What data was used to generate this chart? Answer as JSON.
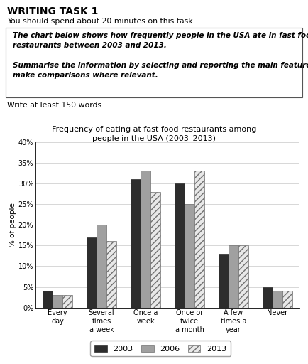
{
  "title_line1": "Frequency of eating at fast food restaurants among",
  "title_line2": "people in the USA (2003–2013)",
  "categories": [
    "Every\nday",
    "Several\ntimes\na week",
    "Once a\nweek",
    "Once or\ntwice\na month",
    "A few\ntimes a\nyear",
    "Never"
  ],
  "years": [
    "2003",
    "2006",
    "2013"
  ],
  "values": {
    "2003": [
      4,
      17,
      31,
      30,
      13,
      5
    ],
    "2006": [
      3,
      20,
      33,
      25,
      15,
      4
    ],
    "2013": [
      3,
      16,
      28,
      33,
      15,
      4
    ]
  },
  "bar_colors": [
    "#2d2d2d",
    "#a0a0a0",
    "#e8e8e8"
  ],
  "bar_hatches": [
    null,
    null,
    "////"
  ],
  "bar_edgecolors": [
    "#2d2d2d",
    "#707070",
    "#707070"
  ],
  "ylabel": "% of people",
  "ylim": [
    0,
    40
  ],
  "yticks": [
    0,
    5,
    10,
    15,
    20,
    25,
    30,
    35,
    40
  ],
  "ytick_labels": [
    "0%",
    "5%",
    "10%",
    "15%",
    "20%",
    "25%",
    "30%",
    "35%",
    "40%"
  ],
  "writing_task_title": "WRITING TASK 1",
  "subtitle1": "You should spend about 20 minutes on this task.",
  "box_text": "The chart below shows how frequently people in the USA ate in fast food\nrestaurants between 2003 and 2013.\n\nSummarise the information by selecting and reporting the main features, and\nmake comparisons where relevant.",
  "footer_text": "Write at least 150 words.",
  "background_color": "#ffffff",
  "grid_color": "#c8c8c8"
}
